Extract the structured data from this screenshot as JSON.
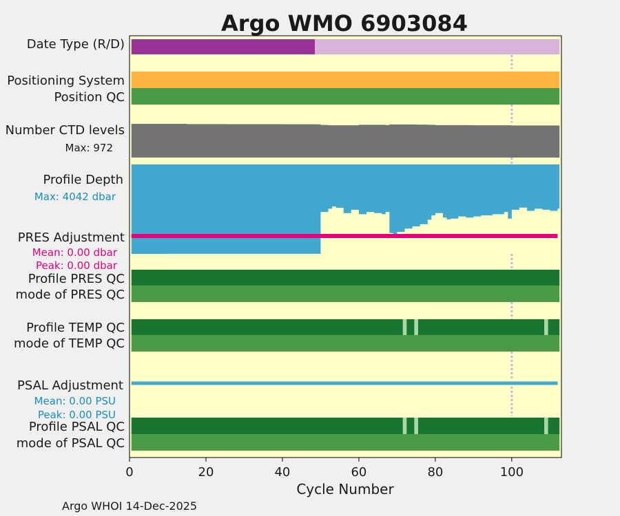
{
  "chart_data": {
    "type": "area",
    "title": "Argo WMO 6903084",
    "xlabel": "Cycle Number",
    "xlim": [
      0,
      113
    ],
    "xticks": [
      "0",
      "20",
      "40",
      "60",
      "80",
      "100"
    ],
    "footer": "Argo WHOI 14-Dec-2025",
    "reference_line_x": 100,
    "colors": {
      "title": "#0d8ab8",
      "background": "#ffffc8",
      "date_type_delayed": "#993399",
      "date_type_realtime": "#d9b3d9",
      "positioning": "#ffb340",
      "qc_good": "#1a7530",
      "qc_mode": "#4a9a48",
      "qc_flag": "#a8d8a8",
      "ctd": "#737373",
      "profile_depth": "#43a8cf",
      "pres_adjustment": "#e6007e",
      "psal_adjustment": "#43a8cf",
      "ref_line": "#b8b8e0"
    },
    "rows": {
      "date_type": "Date Type (R/D)",
      "positioning_system": "Positioning System",
      "position_qc": "Position QC",
      "ctd_levels": "Number CTD levels",
      "ctd_max": "Max: 972",
      "profile_depth": "Profile Depth",
      "depth_max": "Max: 4042 dbar",
      "pres_adjustment": "PRES Adjustment",
      "pres_mean": "Mean: 0.00 dbar",
      "pres_peak": "Peak: 0.00 dbar",
      "profile_pres_qc": "Profile PRES QC",
      "mode_pres_qc": "mode of PRES QC",
      "profile_temp_qc": "Profile TEMP QC",
      "mode_temp_qc": "mode of TEMP QC",
      "psal_adjustment": "PSAL Adjustment",
      "psal_mean": "Mean: 0.00 PSU",
      "psal_peak": "Peak: 0.00 PSU",
      "profile_psal_qc": "Profile PSAL QC",
      "mode_psal_qc": "mode of PSAL QC"
    },
    "date_type": {
      "delayed_cycles": [
        1,
        48
      ],
      "realtime_cycles": [
        49,
        112
      ]
    },
    "ctd_levels_series": [
      [
        1,
        972
      ],
      [
        15,
        965
      ],
      [
        25,
        962
      ],
      [
        40,
        960
      ],
      [
        49,
        958
      ],
      [
        50,
        940
      ],
      [
        52,
        930
      ],
      [
        60,
        945
      ],
      [
        67,
        938
      ],
      [
        68,
        955
      ],
      [
        75,
        950
      ],
      [
        78,
        945
      ],
      [
        80,
        935
      ],
      [
        90,
        930
      ],
      [
        100,
        925
      ],
      [
        112,
        922
      ]
    ],
    "profile_depth_series": [
      [
        1,
        4042
      ],
      [
        10,
        4040
      ],
      [
        20,
        4038
      ],
      [
        30,
        4039
      ],
      [
        40,
        4040
      ],
      [
        49,
        4040
      ],
      [
        50,
        2150
      ],
      [
        52,
        2000
      ],
      [
        53,
        1900
      ],
      [
        54,
        1960
      ],
      [
        56,
        2200
      ],
      [
        58,
        2050
      ],
      [
        60,
        2250
      ],
      [
        62,
        2150
      ],
      [
        64,
        2200
      ],
      [
        66,
        2250
      ],
      [
        67,
        2150
      ],
      [
        68,
        3100
      ],
      [
        69,
        3250
      ],
      [
        70,
        3050
      ],
      [
        72,
        2900
      ],
      [
        74,
        2800
      ],
      [
        76,
        2700
      ],
      [
        78,
        2500
      ],
      [
        79,
        2300
      ],
      [
        80,
        2200
      ],
      [
        82,
        2400
      ],
      [
        83,
        2480
      ],
      [
        84,
        2450
      ],
      [
        86,
        2350
      ],
      [
        88,
        2400
      ],
      [
        90,
        2350
      ],
      [
        92,
        2300
      ],
      [
        95,
        2250
      ],
      [
        98,
        2150
      ],
      [
        99,
        2450
      ],
      [
        100,
        2050
      ],
      [
        102,
        1950
      ],
      [
        104,
        2100
      ],
      [
        106,
        2000
      ],
      [
        108,
        2050
      ],
      [
        110,
        2100
      ],
      [
        112,
        2000
      ]
    ],
    "temp_qc_flagged_cycles": [
      72,
      75,
      109
    ],
    "psal_qc_flagged_cycles": [
      72,
      75,
      109
    ]
  }
}
